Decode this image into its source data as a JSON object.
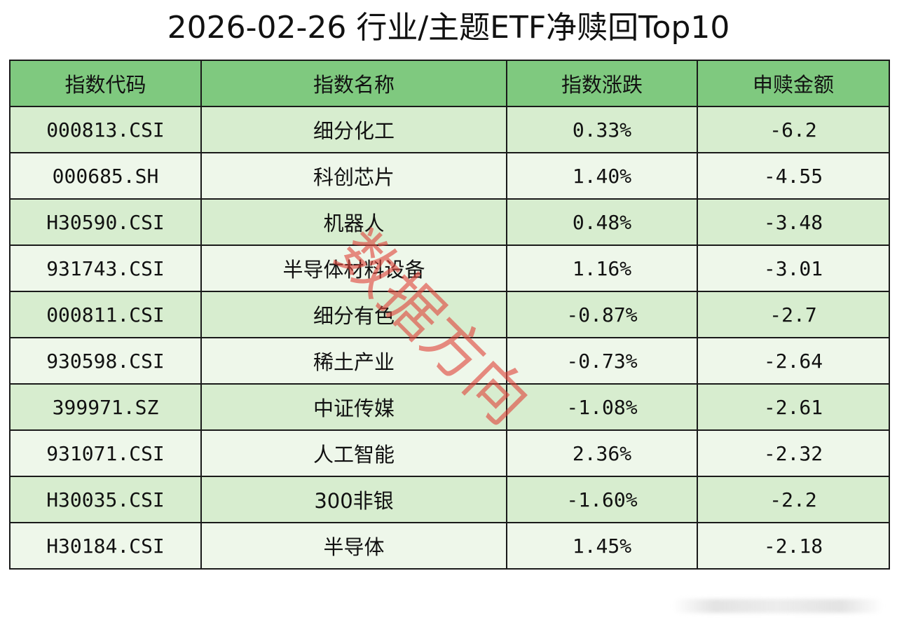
{
  "title": "2026-02-26 行业/主题ETF净赎回Top10",
  "table": {
    "headers": [
      "指数代码",
      "指数名称",
      "指数涨跌",
      "申赎金额"
    ],
    "rows": [
      [
        "000813.CSI",
        "细分化工",
        "0.33%",
        "-6.2"
      ],
      [
        "000685.SH",
        "科创芯片",
        "1.40%",
        "-4.55"
      ],
      [
        "H30590.CSI",
        "机器人",
        "0.48%",
        "-3.48"
      ],
      [
        "931743.CSI",
        "半导体材料设备",
        "1.16%",
        "-3.01"
      ],
      [
        "000811.CSI",
        "细分有色",
        "-0.87%",
        "-2.7"
      ],
      [
        "930598.CSI",
        "稀土产业",
        "-0.73%",
        "-2.64"
      ],
      [
        "399971.SZ",
        "中证传媒",
        "-1.08%",
        "-2.61"
      ],
      [
        "931071.CSI",
        "人工智能",
        "2.36%",
        "-2.32"
      ],
      [
        "H30035.CSI",
        "300非银",
        "-1.60%",
        "-2.2"
      ],
      [
        "H30184.CSI",
        "半导体",
        "1.45%",
        "-2.18"
      ]
    ]
  },
  "watermark": "数据方向",
  "colors": {
    "header_bg": "#7fc97f",
    "row_odd": "#d7edcf",
    "row_even": "#eef7ea",
    "watermark": "#de463c"
  }
}
